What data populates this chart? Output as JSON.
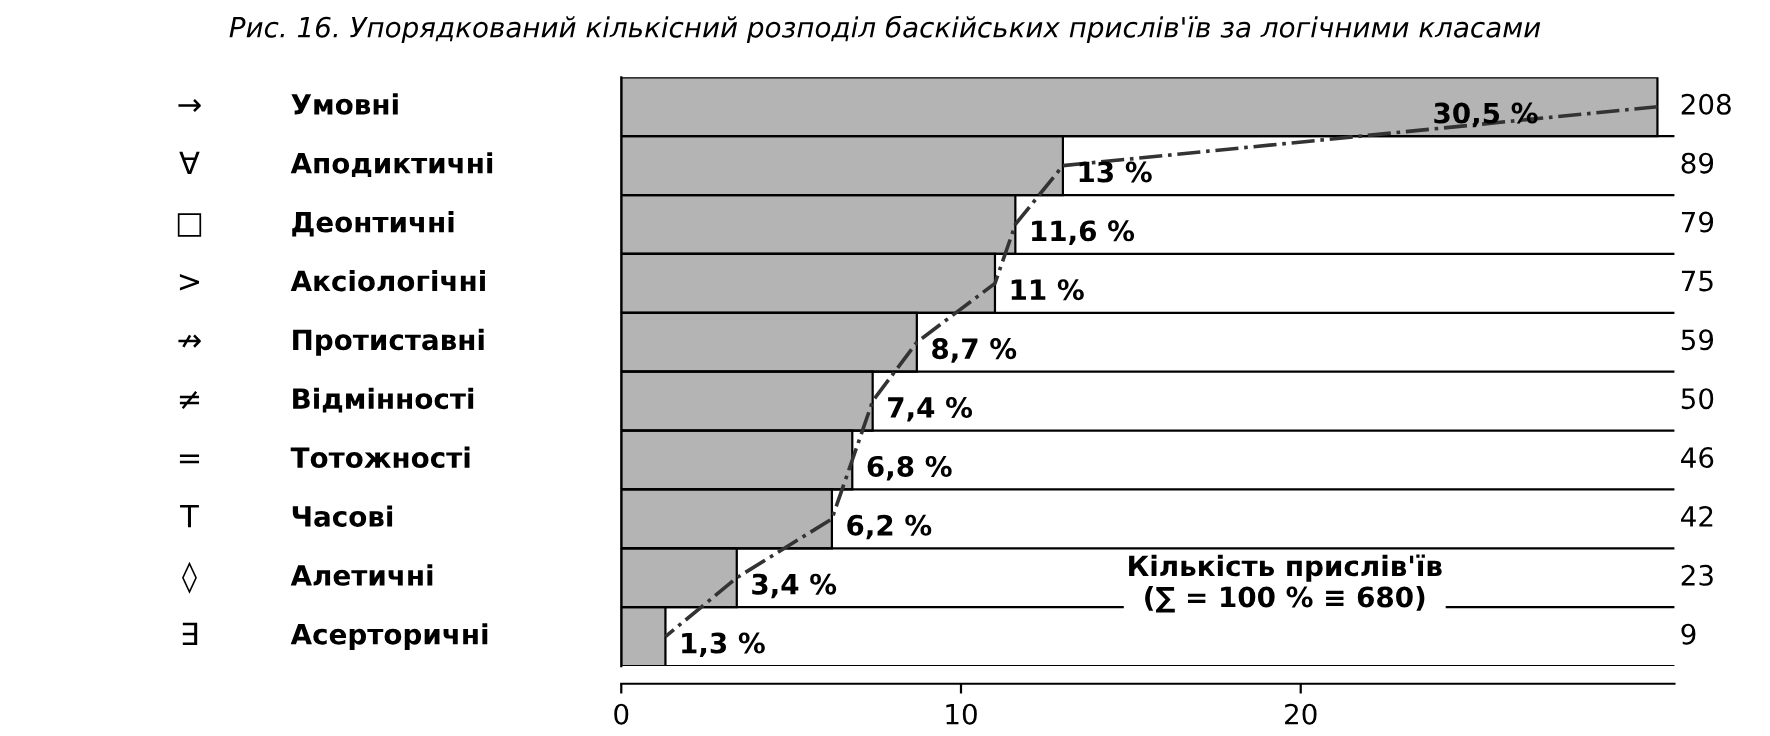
{
  "chart_data": {
    "type": "bar",
    "orientation": "horizontal",
    "title": "Рис. 16. Упорядкований кількісний розподіл баскійських прислів'їв за логічними класами",
    "categories": [
      "Умовні",
      "Аподиктичні",
      "Деонтичні",
      "Аксіологічні",
      "Протиставні",
      "Відмінності",
      "Тотожності",
      "Часові",
      "Алетичні",
      "Асерторичні"
    ],
    "series": [
      {
        "color": "#b4b4b4",
        "values": [
          30.5,
          13,
          11.6,
          11,
          8.7,
          7.4,
          6.8,
          6.2,
          3.4,
          1.3
        ],
        "value_labels": [
          "30,5 %",
          "13 %",
          "11,6 %",
          "11 %",
          "8,7 %",
          "7,4 %",
          "6,8 %",
          "6,2 %",
          "3,4 %",
          "1,3 %"
        ]
      },
      {
        "type": "line",
        "color": "#333333",
        "line_style": "dashed",
        "marker": "none",
        "values": [
          30.5,
          13,
          11.6,
          11,
          8.7,
          7.4,
          6.8,
          6.2,
          3.4,
          1.3
        ]
      }
    ],
    "xlim": [
      0,
      31
    ],
    "xticks": [
      0,
      10,
      20
    ],
    "tick_labels": "x",
    "grid": false,
    "legend": false,
    "annotations": [
      "→",
      "∀",
      "□",
      ">",
      "↛",
      "≠",
      "=",
      "T",
      "◊",
      "∃",
      "208",
      "89",
      "79",
      "75",
      "59",
      "50",
      "46",
      "42",
      "23",
      "9",
      "Кількість прислів'їв\n(∑ = 100 % ≡ 680)"
    ]
  }
}
